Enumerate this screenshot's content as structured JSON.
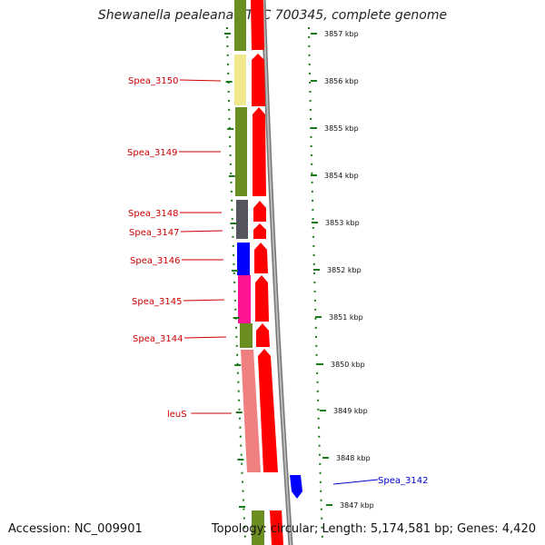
{
  "title": "Shewanella pealeana ATCC 700345, complete genome",
  "accession": "Accession: NC_009901",
  "summary": "Topology: circular; Length: 5,174,581 bp; Genes: 4,420",
  "colors": {
    "olive": "#6b8e23",
    "pale_yellow": "#f0e68c",
    "dark_gray": "#555560",
    "blue": "#0000ff",
    "magenta": "#ff1493",
    "salmon": "#f08080",
    "red": "#ff0000",
    "label_red": "#cc0000",
    "label_blue": "#0000cc",
    "tick_green": "#1a7a1a"
  },
  "kbp_ticks": [
    "3857 kbp",
    "3856 kbp",
    "3855 kbp",
    "3854 kbp",
    "3853 kbp",
    "3852 kbp",
    "3851 kbp",
    "3850 kbp",
    "3849 kbp",
    "3848 kbp",
    "3847 kbp"
  ],
  "gene_labels": [
    {
      "name": "Spea_3150",
      "strand": "reverse"
    },
    {
      "name": "Spea_3149",
      "strand": "reverse"
    },
    {
      "name": "Spea_3148",
      "strand": "reverse"
    },
    {
      "name": "Spea_3147",
      "strand": "reverse"
    },
    {
      "name": "Spea_3146",
      "strand": "reverse"
    },
    {
      "name": "Spea_3145",
      "strand": "reverse"
    },
    {
      "name": "Spea_3144",
      "strand": "reverse"
    },
    {
      "name": "leuS",
      "strand": "reverse"
    },
    {
      "name": "Spea_3142",
      "strand": "forward"
    }
  ]
}
